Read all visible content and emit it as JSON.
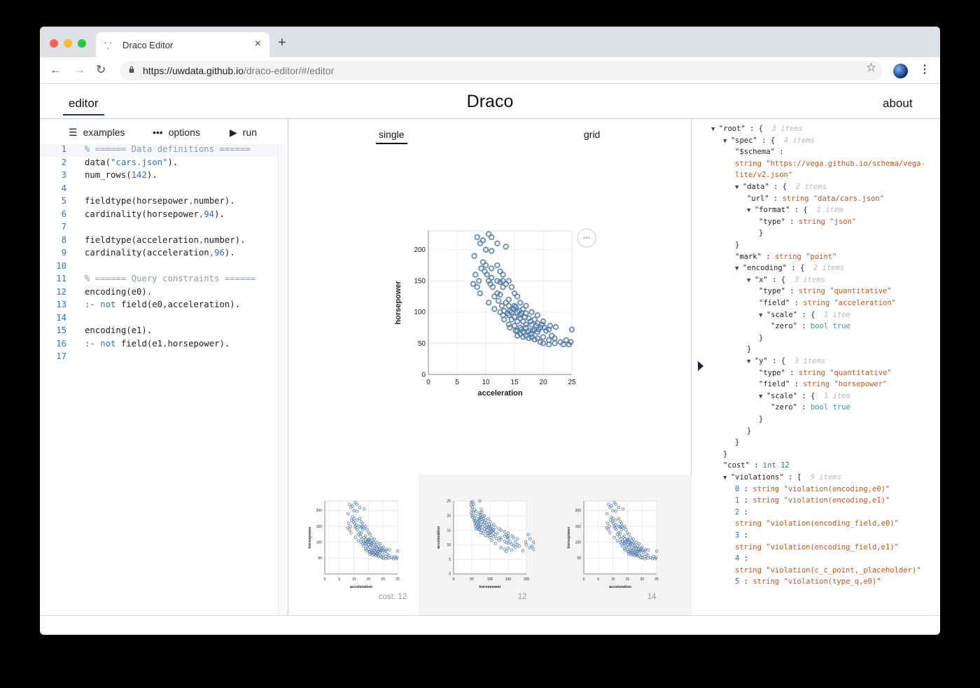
{
  "browser": {
    "tab_title": "Draco Editor",
    "url_host": "https://uwdata.github.io",
    "url_path": "/draco-editor/#/editor"
  },
  "app": {
    "title": "Draco",
    "nav_editor": "editor",
    "nav_about": "about"
  },
  "editor_toolbar": {
    "examples": "examples",
    "options": "options",
    "run": "run"
  },
  "code_lines": [
    {
      "n": "1",
      "parts": [
        [
          "c-comment",
          "% ====== Data definitions ======"
        ]
      ]
    },
    {
      "n": "2",
      "parts": [
        [
          "",
          "data("
        ],
        [
          "c-str",
          "\"cars.json\""
        ],
        [
          "",
          ")."
        ]
      ]
    },
    {
      "n": "3",
      "parts": [
        [
          "",
          "num_rows("
        ],
        [
          "c-num",
          "142"
        ],
        [
          "",
          ")."
        ]
      ]
    },
    {
      "n": "4",
      "parts": []
    },
    {
      "n": "5",
      "parts": [
        [
          "",
          "fieldtype(horsepower"
        ],
        [
          "c-kw",
          ","
        ],
        [
          "",
          "number)."
        ]
      ]
    },
    {
      "n": "6",
      "parts": [
        [
          "",
          "cardinality(horsepower"
        ],
        [
          "c-kw",
          ","
        ],
        [
          "c-num",
          "94"
        ],
        [
          "",
          ")."
        ]
      ]
    },
    {
      "n": "7",
      "parts": []
    },
    {
      "n": "8",
      "parts": [
        [
          "",
          "fieldtype(acceleration"
        ],
        [
          "c-kw",
          ","
        ],
        [
          "",
          "number)."
        ]
      ]
    },
    {
      "n": "9",
      "parts": [
        [
          "",
          "cardinality(acceleration"
        ],
        [
          "c-kw",
          ","
        ],
        [
          "c-num",
          "96"
        ],
        [
          "",
          ")."
        ]
      ]
    },
    {
      "n": "10",
      "parts": []
    },
    {
      "n": "11",
      "parts": [
        [
          "c-comment",
          "% ====== Query constraints ======"
        ]
      ]
    },
    {
      "n": "12",
      "parts": [
        [
          "",
          "encoding(e0)."
        ]
      ]
    },
    {
      "n": "13",
      "parts": [
        [
          "c-kw",
          ":- not"
        ],
        [
          "",
          " field(e0,acceleration)."
        ]
      ]
    },
    {
      "n": "14",
      "parts": []
    },
    {
      "n": "15",
      "parts": [
        [
          "",
          "encoding(e1)."
        ]
      ]
    },
    {
      "n": "16",
      "parts": [
        [
          "c-kw",
          ":- not"
        ],
        [
          "",
          " field(e1"
        ],
        [
          "c-kw",
          ","
        ],
        [
          "",
          "horsepower)."
        ]
      ]
    },
    {
      "n": "17",
      "parts": []
    }
  ],
  "view_tabs": {
    "single": "single",
    "grid": "grid"
  },
  "chart_data": [
    {
      "type": "scatter",
      "xlabel": "acceleration",
      "ylabel": "horsepower",
      "xlim": [
        0,
        25
      ],
      "ylim": [
        0,
        230
      ],
      "xticks": [
        "0",
        "5",
        "10",
        "15",
        "20",
        "25"
      ],
      "yticks": [
        "0",
        "50",
        "100",
        "150",
        "200"
      ],
      "points": [
        [
          8.5,
          220
        ],
        [
          9.5,
          215
        ],
        [
          9,
          210
        ],
        [
          10.5,
          225
        ],
        [
          11,
          220
        ],
        [
          12,
          210
        ],
        [
          13.5,
          205
        ],
        [
          10,
          200
        ],
        [
          11,
          198
        ],
        [
          8,
          190
        ],
        [
          9.5,
          180
        ],
        [
          10,
          175
        ],
        [
          11,
          170
        ],
        [
          12,
          175
        ],
        [
          12.5,
          165
        ],
        [
          13,
          160
        ],
        [
          10.5,
          150
        ],
        [
          11,
          155
        ],
        [
          12,
          150
        ],
        [
          12.5,
          148
        ],
        [
          13,
          150
        ],
        [
          13.5,
          145
        ],
        [
          14,
          150
        ],
        [
          14.5,
          140
        ],
        [
          13,
          140
        ],
        [
          12,
          130
        ],
        [
          12.5,
          128
        ],
        [
          14,
          120
        ],
        [
          15,
          130
        ],
        [
          15.5,
          125
        ],
        [
          13.5,
          115
        ],
        [
          14,
          110
        ],
        [
          15,
          110
        ],
        [
          16,
          115
        ],
        [
          16.5,
          105
        ],
        [
          17,
          110
        ],
        [
          15.5,
          100
        ],
        [
          14.5,
          100
        ],
        [
          13,
          95
        ],
        [
          14,
          95
        ],
        [
          16,
          95
        ],
        [
          17,
          98
        ],
        [
          18,
          100
        ],
        [
          19,
          95
        ],
        [
          15,
          92
        ],
        [
          16,
          90
        ],
        [
          17.5,
          90
        ],
        [
          18.5,
          88
        ],
        [
          14.5,
          88
        ],
        [
          15.5,
          85
        ],
        [
          16.5,
          85
        ],
        [
          17,
          80
        ],
        [
          18,
          80
        ],
        [
          19,
          82
        ],
        [
          20,
          85
        ],
        [
          14,
          80
        ],
        [
          15,
          78
        ],
        [
          16,
          75
        ],
        [
          17,
          75
        ],
        [
          18.5,
          72
        ],
        [
          19.5,
          75
        ],
        [
          15.5,
          70
        ],
        [
          16.5,
          68
        ],
        [
          17.5,
          70
        ],
        [
          18,
          65
        ],
        [
          19,
          68
        ],
        [
          20.5,
          70
        ],
        [
          21,
          72
        ],
        [
          16,
          65
        ],
        [
          17,
          62
        ],
        [
          18,
          60
        ],
        [
          19,
          58
        ],
        [
          20,
          60
        ],
        [
          21.5,
          62
        ],
        [
          22,
          58
        ],
        [
          20,
          50
        ],
        [
          21,
          48
        ],
        [
          22,
          50
        ],
        [
          23,
          52
        ],
        [
          24,
          55
        ],
        [
          24.5,
          48
        ],
        [
          25,
          72
        ],
        [
          24.8,
          52
        ],
        [
          23.5,
          48
        ],
        [
          21,
          55
        ],
        [
          19.5,
          52
        ],
        [
          18.5,
          56
        ],
        [
          17.5,
          58
        ],
        [
          16.5,
          60
        ],
        [
          15.5,
          62
        ],
        [
          14.8,
          105
        ],
        [
          15.2,
          108
        ],
        [
          15.8,
          102
        ],
        [
          16.2,
          98
        ],
        [
          16.8,
          92
        ],
        [
          14.2,
          102
        ],
        [
          13.8,
          98
        ],
        [
          13.2,
          102
        ],
        [
          12.8,
          110
        ],
        [
          12.2,
          118
        ],
        [
          11.5,
          125
        ],
        [
          11.2,
          140
        ],
        [
          10.8,
          145
        ],
        [
          10.2,
          160
        ],
        [
          9.8,
          165
        ],
        [
          9.2,
          170
        ],
        [
          8.8,
          150
        ],
        [
          8.2,
          160
        ],
        [
          7.8,
          145
        ],
        [
          13.2,
          88
        ],
        [
          14.2,
          75
        ],
        [
          15.2,
          70
        ],
        [
          16.2,
          72
        ],
        [
          17.2,
          68
        ],
        [
          18.2,
          70
        ],
        [
          19.2,
          72
        ],
        [
          20.2,
          75
        ],
        [
          21.2,
          78
        ],
        [
          22.2,
          76
        ],
        [
          17.8,
          85
        ],
        [
          18.8,
          78
        ],
        [
          19.8,
          80
        ],
        [
          12.5,
          100
        ],
        [
          11.5,
          105
        ],
        [
          10.5,
          115
        ],
        [
          9,
          130
        ],
        [
          8.5,
          140
        ]
      ]
    },
    {
      "type": "scatter",
      "xlabel": "acceleration",
      "ylabel": "horsepower",
      "xticks": [
        "0",
        "5",
        "10",
        "15",
        "20",
        "25"
      ],
      "yticks": [
        "50",
        "100",
        "150",
        "200"
      ]
    },
    {
      "type": "scatter",
      "xlabel": "horsepower",
      "ylabel": "acceleration",
      "xticks": [
        "0",
        "50",
        "100",
        "150",
        "200"
      ],
      "yticks": [
        "0",
        "5",
        "10",
        "15",
        "20",
        "25"
      ]
    },
    {
      "type": "scatter",
      "xlabel": "acceleration",
      "ylabel": "horsepower",
      "xticks": [
        "0",
        "5",
        "10",
        "15",
        "20",
        "25"
      ],
      "yticks": [
        "50",
        "100",
        "150",
        "200"
      ]
    }
  ],
  "thumb_costs": [
    "cost: 12",
    "12",
    "14"
  ],
  "json_tree": [
    {
      "d": 0,
      "tri": true,
      "parts": [
        [
          "",
          "\"root\" : {  "
        ],
        [
          "jmeta",
          "3 items"
        ]
      ]
    },
    {
      "d": 1,
      "tri": true,
      "parts": [
        [
          "",
          "\"spec\" : {  "
        ],
        [
          "jmeta",
          "4 items"
        ]
      ]
    },
    {
      "d": 2,
      "tri": false,
      "parts": [
        [
          "",
          "\"$schema\" :"
        ]
      ]
    },
    {
      "d": 2,
      "tri": false,
      "parts": [
        [
          "jtype",
          "string "
        ],
        [
          "jstr",
          "\"https://vega.github.io/schema/vega-"
        ]
      ]
    },
    {
      "d": 2,
      "tri": false,
      "parts": [
        [
          "jstr",
          "lite/v2.json\""
        ]
      ]
    },
    {
      "d": 2,
      "tri": true,
      "parts": [
        [
          "",
          "\"data\" : {  "
        ],
        [
          "jmeta",
          "2 items"
        ]
      ]
    },
    {
      "d": 3,
      "tri": false,
      "parts": [
        [
          "",
          "\"url\" : "
        ],
        [
          "jtype",
          "string "
        ],
        [
          "jstr",
          "\"data/cars.json\""
        ]
      ]
    },
    {
      "d": 3,
      "tri": true,
      "parts": [
        [
          "",
          "\"format\" : {  "
        ],
        [
          "jmeta",
          "1 item"
        ]
      ]
    },
    {
      "d": 4,
      "tri": false,
      "parts": [
        [
          "",
          "\"type\" : "
        ],
        [
          "jtype",
          "string "
        ],
        [
          "jstr",
          "\"json\""
        ]
      ]
    },
    {
      "d": 4,
      "tri": false,
      "parts": [
        [
          "",
          "}"
        ]
      ]
    },
    {
      "d": 2,
      "tri": false,
      "parts": [
        [
          "",
          "}"
        ]
      ]
    },
    {
      "d": 2,
      "tri": false,
      "parts": [
        [
          "",
          "\"mark\" : "
        ],
        [
          "jtype",
          "string "
        ],
        [
          "jstr",
          "\"point\""
        ]
      ]
    },
    {
      "d": 2,
      "tri": true,
      "parts": [
        [
          "",
          "\"encoding\" : {  "
        ],
        [
          "jmeta",
          "2 items"
        ]
      ]
    },
    {
      "d": 3,
      "tri": true,
      "parts": [
        [
          "",
          "\"x\" : {  "
        ],
        [
          "jmeta",
          "3 items"
        ]
      ]
    },
    {
      "d": 4,
      "tri": false,
      "parts": [
        [
          "",
          "\"type\" : "
        ],
        [
          "jtype",
          "string "
        ],
        [
          "jstr",
          "\"quantitative\""
        ]
      ]
    },
    {
      "d": 4,
      "tri": false,
      "parts": [
        [
          "",
          "\"field\" : "
        ],
        [
          "jtype",
          "string "
        ],
        [
          "jstr",
          "\"acceleration\""
        ]
      ]
    },
    {
      "d": 4,
      "tri": true,
      "parts": [
        [
          "",
          "\"scale\" : {  "
        ],
        [
          "jmeta",
          "1 item"
        ]
      ]
    },
    {
      "d": 5,
      "tri": false,
      "parts": [
        [
          "",
          "\"zero\" : "
        ],
        [
          "jbool",
          "bool true"
        ]
      ]
    },
    {
      "d": 4,
      "tri": false,
      "parts": [
        [
          "",
          "}"
        ]
      ]
    },
    {
      "d": 3,
      "tri": false,
      "parts": [
        [
          "",
          "}"
        ]
      ]
    },
    {
      "d": 3,
      "tri": true,
      "parts": [
        [
          "",
          "\"y\" : {  "
        ],
        [
          "jmeta",
          "3 items"
        ]
      ]
    },
    {
      "d": 4,
      "tri": false,
      "parts": [
        [
          "",
          "\"type\" : "
        ],
        [
          "jtype",
          "string "
        ],
        [
          "jstr",
          "\"quantitative\""
        ]
      ]
    },
    {
      "d": 4,
      "tri": false,
      "parts": [
        [
          "",
          "\"field\" : "
        ],
        [
          "jtype",
          "string "
        ],
        [
          "jstr",
          "\"horsepower\""
        ]
      ]
    },
    {
      "d": 4,
      "tri": true,
      "parts": [
        [
          "",
          "\"scale\" : {  "
        ],
        [
          "jmeta",
          "1 item"
        ]
      ]
    },
    {
      "d": 5,
      "tri": false,
      "parts": [
        [
          "",
          "\"zero\" : "
        ],
        [
          "jbool",
          "bool true"
        ]
      ]
    },
    {
      "d": 4,
      "tri": false,
      "parts": [
        [
          "",
          "}"
        ]
      ]
    },
    {
      "d": 3,
      "tri": false,
      "parts": [
        [
          "",
          "}"
        ]
      ]
    },
    {
      "d": 2,
      "tri": false,
      "parts": [
        [
          "",
          "}"
        ]
      ]
    },
    {
      "d": 1,
      "tri": false,
      "parts": [
        [
          "",
          "}"
        ]
      ]
    },
    {
      "d": 1,
      "tri": false,
      "parts": [
        [
          "",
          "\"cost\" : "
        ],
        [
          "jint",
          "int 12"
        ]
      ]
    },
    {
      "d": 1,
      "tri": true,
      "parts": [
        [
          "",
          "\"violations\" : [  "
        ],
        [
          "jmeta",
          "9 items"
        ]
      ]
    },
    {
      "d": 2,
      "tri": false,
      "parts": [
        [
          "jint",
          "0"
        ],
        [
          "",
          " : "
        ],
        [
          "jtype",
          "string "
        ],
        [
          "jstr",
          "\"violation(encoding,e0)\""
        ]
      ]
    },
    {
      "d": 2,
      "tri": false,
      "parts": [
        [
          "jint",
          "1"
        ],
        [
          "",
          " : "
        ],
        [
          "jtype",
          "string "
        ],
        [
          "jstr",
          "\"violation(encoding,e1)\""
        ]
      ]
    },
    {
      "d": 2,
      "tri": false,
      "parts": [
        [
          "jint",
          "2"
        ],
        [
          "",
          " :"
        ]
      ]
    },
    {
      "d": 2,
      "tri": false,
      "parts": [
        [
          "jtype",
          "string "
        ],
        [
          "jstr",
          "\"violation(encoding_field,e0)\""
        ]
      ]
    },
    {
      "d": 2,
      "tri": false,
      "parts": [
        [
          "jint",
          "3"
        ],
        [
          "",
          " :"
        ]
      ]
    },
    {
      "d": 2,
      "tri": false,
      "parts": [
        [
          "jtype",
          "string "
        ],
        [
          "jstr",
          "\"violation(encoding_field,e1)\""
        ]
      ]
    },
    {
      "d": 2,
      "tri": false,
      "parts": [
        [
          "jint",
          "4"
        ],
        [
          "",
          " :"
        ]
      ]
    },
    {
      "d": 2,
      "tri": false,
      "parts": [
        [
          "jtype",
          "string "
        ],
        [
          "jstr",
          "\"violation(c_c_point,_placeholder)\""
        ]
      ]
    },
    {
      "d": 2,
      "tri": false,
      "parts": [
        [
          "jint",
          "5"
        ],
        [
          "",
          " : "
        ],
        [
          "jtype",
          "string "
        ],
        [
          "jstr",
          "\"violation(type_q,e0)\""
        ]
      ]
    }
  ],
  "colors": {
    "accent": "#4c78a8",
    "nav_underline": "#1e3a6e"
  }
}
